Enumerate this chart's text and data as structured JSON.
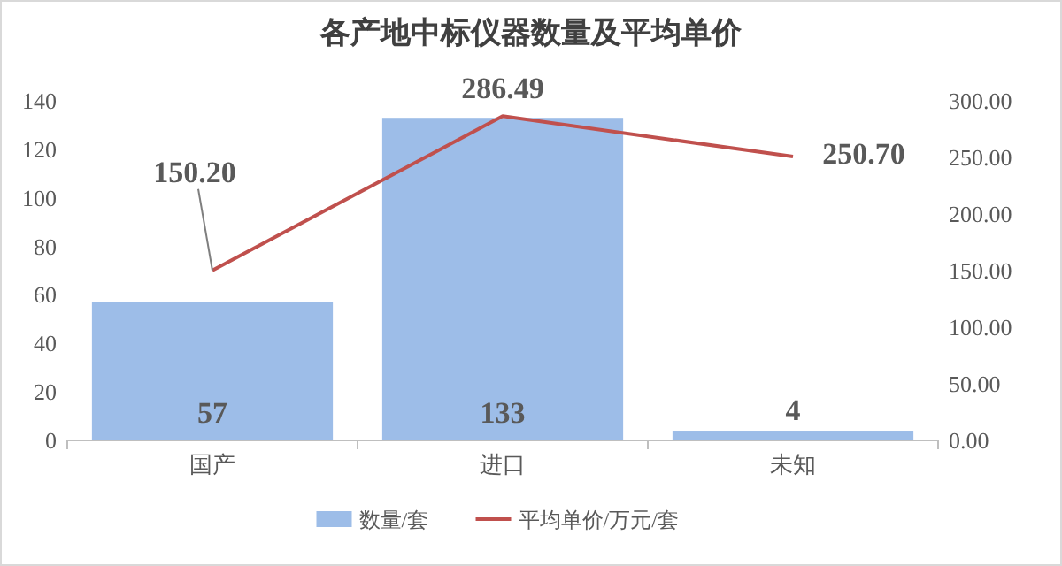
{
  "chart_data": {
    "type": "bar",
    "title": "各产地中标仪器数量及平均单价",
    "categories": [
      "国产",
      "进口",
      "未知"
    ],
    "series": [
      {
        "name": "数量/套",
        "color": "#9dbde8",
        "values": [
          57,
          133,
          4
        ],
        "value_labels": [
          "57",
          "133",
          "4"
        ]
      },
      {
        "name": "平均单价/万元/套",
        "type": "line",
        "axis": "y2",
        "color": "#c0504d",
        "values": [
          150.2,
          286.49,
          250.7
        ],
        "value_labels": [
          "150.20",
          "286.49",
          "250.70"
        ]
      }
    ],
    "ylim": [
      0,
      140
    ],
    "yticks": [
      0,
      20,
      40,
      60,
      80,
      100,
      120,
      140
    ],
    "y2lim": [
      0,
      300
    ],
    "y2ticks": [
      {
        "value": 0,
        "label": "0.00"
      },
      {
        "value": 50,
        "label": "50.00"
      },
      {
        "value": 100,
        "label": "100.00"
      },
      {
        "value": 150,
        "label": "150.00"
      },
      {
        "value": 200,
        "label": "200.00"
      },
      {
        "value": 250,
        "label": "250.00"
      },
      {
        "value": 300,
        "label": "300.00"
      }
    ],
    "legend": "bottom",
    "marker": "none"
  }
}
